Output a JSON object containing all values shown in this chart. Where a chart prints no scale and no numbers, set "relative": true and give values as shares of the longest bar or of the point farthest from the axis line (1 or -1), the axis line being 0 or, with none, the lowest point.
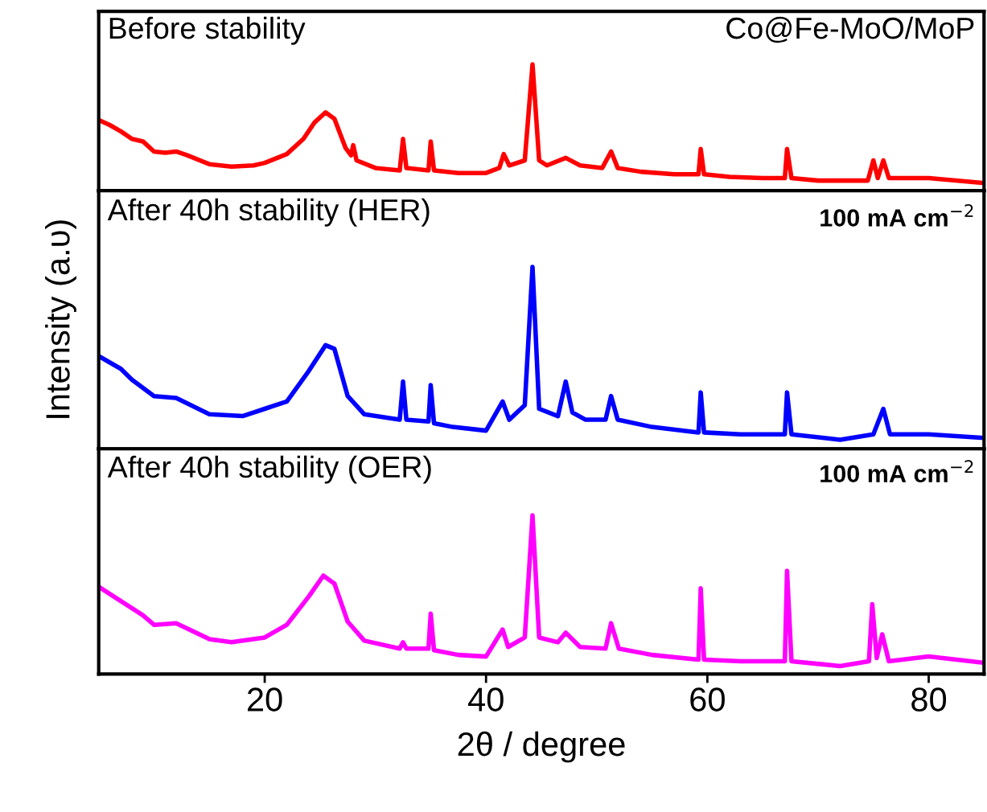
{
  "chart_data": [
    {
      "type": "line",
      "relative": true,
      "xlim": [
        5,
        85
      ],
      "tick_labels": false,
      "grid": false,
      "line_style": "solid",
      "marker": "none",
      "annotations": [
        "Before stability",
        "Co@Fe-MoO/MoP"
      ],
      "series": [
        {
          "color": "#ff0000",
          "x": [
            5,
            6,
            7,
            8,
            9,
            10,
            11,
            12,
            13,
            15,
            17,
            19,
            20,
            22,
            23.5,
            24.5,
            25.5,
            26.3,
            27.3,
            27.8,
            28.0,
            28.3,
            30,
            32.2,
            32.5,
            32.8,
            34.8,
            35.0,
            35.3,
            37.5,
            40,
            41.2,
            41.6,
            42.1,
            43.5,
            44.2,
            44.8,
            45.5,
            47.2,
            48.5,
            50.5,
            51.3,
            51.9,
            54,
            57,
            59.2,
            59.4,
            59.7,
            62,
            65,
            67,
            67.2,
            67.6,
            70,
            74.5,
            75.0,
            75.4,
            75.9,
            76.4,
            80,
            85
          ],
          "values": [
            0.56,
            0.52,
            0.47,
            0.41,
            0.39,
            0.31,
            0.3,
            0.31,
            0.28,
            0.21,
            0.19,
            0.2,
            0.22,
            0.29,
            0.41,
            0.54,
            0.62,
            0.57,
            0.34,
            0.28,
            0.36,
            0.24,
            0.18,
            0.16,
            0.41,
            0.18,
            0.16,
            0.39,
            0.16,
            0.14,
            0.14,
            0.18,
            0.29,
            0.2,
            0.24,
            1.0,
            0.24,
            0.2,
            0.26,
            0.2,
            0.18,
            0.31,
            0.18,
            0.15,
            0.13,
            0.13,
            0.33,
            0.13,
            0.11,
            0.1,
            0.1,
            0.33,
            0.1,
            0.08,
            0.08,
            0.24,
            0.1,
            0.24,
            0.1,
            0.1,
            0.06
          ]
        }
      ]
    },
    {
      "type": "line",
      "relative": true,
      "xlim": [
        5,
        85
      ],
      "tick_labels": false,
      "grid": false,
      "line_style": "solid",
      "marker": "none",
      "ylabel": "Intensity (a.υ)",
      "annotations": [
        "After 40h stability (HER)",
        "100 mA cm$^{−2}$"
      ],
      "series": [
        {
          "color": "#0000ff",
          "x": [
            5,
            7,
            8,
            10,
            12,
            15,
            18,
            20,
            22,
            24,
            25.5,
            26.3,
            27.5,
            29,
            32.2,
            32.5,
            32.8,
            34.8,
            35.0,
            35.3,
            37,
            40,
            41.5,
            42.1,
            43.5,
            44.2,
            44.8,
            46.5,
            47.2,
            47.8,
            49,
            50.8,
            51.3,
            51.9,
            55,
            59.2,
            59.4,
            59.7,
            63,
            67,
            67.2,
            67.6,
            72,
            75,
            75.9,
            76.5,
            80,
            85
          ],
          "values": [
            0.51,
            0.44,
            0.38,
            0.29,
            0.28,
            0.19,
            0.18,
            0.22,
            0.26,
            0.43,
            0.57,
            0.55,
            0.29,
            0.19,
            0.16,
            0.37,
            0.16,
            0.15,
            0.35,
            0.14,
            0.12,
            0.1,
            0.26,
            0.16,
            0.24,
            1.0,
            0.22,
            0.18,
            0.37,
            0.2,
            0.16,
            0.16,
            0.29,
            0.16,
            0.12,
            0.09,
            0.31,
            0.09,
            0.08,
            0.08,
            0.31,
            0.08,
            0.05,
            0.08,
            0.22,
            0.08,
            0.08,
            0.06
          ]
        }
      ]
    },
    {
      "type": "line",
      "relative": true,
      "xlim": [
        5,
        85
      ],
      "xticks": [
        20,
        40,
        60,
        80
      ],
      "tick_labels": "x",
      "grid": false,
      "line_style": "solid",
      "marker": "none",
      "xlabel": "2θ / degree",
      "annotations": [
        "After 40h stability (OER)",
        "100 mA cm$^{−2}$"
      ],
      "series": [
        {
          "color": "#ff00ff",
          "x": [
            5,
            7,
            9,
            10,
            12,
            15,
            17,
            20,
            22,
            24,
            25.3,
            26.3,
            27.5,
            29,
            32.2,
            32.5,
            32.8,
            34.8,
            35.0,
            35.3,
            37.5,
            40,
            41.5,
            42,
            43.5,
            44.2,
            44.8,
            46.5,
            47.2,
            48.5,
            50.8,
            51.3,
            52,
            55,
            59.2,
            59.4,
            59.7,
            63,
            67,
            67.2,
            67.6,
            72,
            74.6,
            74.9,
            75.3,
            75.8,
            76.4,
            80,
            85
          ],
          "values": [
            0.55,
            0.46,
            0.37,
            0.31,
            0.32,
            0.22,
            0.2,
            0.23,
            0.31,
            0.49,
            0.62,
            0.57,
            0.33,
            0.21,
            0.16,
            0.2,
            0.16,
            0.16,
            0.38,
            0.15,
            0.12,
            0.11,
            0.28,
            0.17,
            0.23,
            1.0,
            0.23,
            0.2,
            0.26,
            0.17,
            0.16,
            0.32,
            0.16,
            0.12,
            0.09,
            0.54,
            0.09,
            0.08,
            0.08,
            0.65,
            0.08,
            0.05,
            0.08,
            0.44,
            0.1,
            0.25,
            0.08,
            0.11,
            0.07
          ]
        }
      ]
    }
  ]
}
